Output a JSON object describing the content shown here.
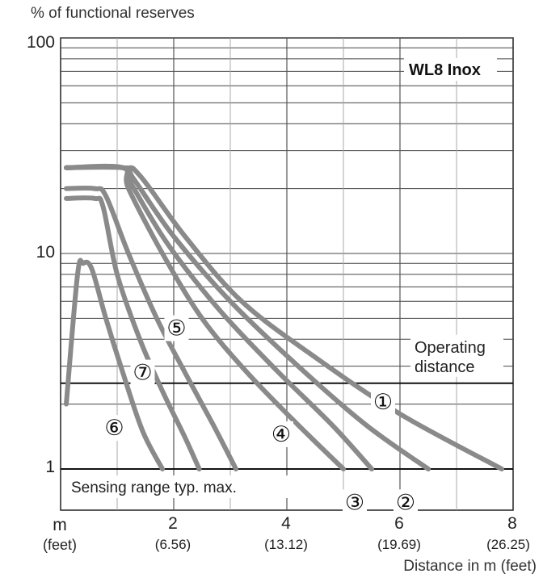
{
  "chart_data": {
    "type": "line",
    "title": "% of functional reserves",
    "xlabel": "Distance in m (feet)",
    "x_unit_label": "m",
    "x_unit_sublabel": "(feet)",
    "y_scale": "log",
    "xlim": [
      0,
      8
    ],
    "ylim": [
      1,
      100
    ],
    "grid": true,
    "x_ticks": [
      {
        "value": 2,
        "label": "2",
        "sub": "(6.56)"
      },
      {
        "value": 4,
        "label": "4",
        "sub": "(13.12)"
      },
      {
        "value": 6,
        "label": "6",
        "sub": "(19.69)"
      },
      {
        "value": 8,
        "label": "8",
        "sub": "(26.25)"
      }
    ],
    "y_ticks": [
      {
        "value": 1,
        "label": "1"
      },
      {
        "value": 10,
        "label": "10"
      },
      {
        "value": 100,
        "label": "100"
      }
    ],
    "legend": "WL8 Inox",
    "reference_lines": [
      {
        "y": 2.5,
        "label_line1": "Operating",
        "label_line2": "distance"
      },
      {
        "y": 1,
        "label": "Sensing range typ. max."
      }
    ],
    "series": [
      {
        "marker": "①",
        "x": [
          0.1,
          1.1,
          1.4,
          2.2,
          3.2,
          4.5,
          6.0,
          7.8
        ],
        "y": [
          25,
          25,
          23,
          12,
          6,
          3.3,
          1.8,
          1.0
        ],
        "label_at": [
          5.7,
          2.05
        ]
      },
      {
        "marker": "②",
        "x": [
          0.1,
          1.1,
          1.3,
          2.0,
          3.0,
          4.2,
          5.4,
          6.5
        ],
        "y": [
          25,
          25,
          22,
          12,
          6,
          3.0,
          1.6,
          1.0
        ],
        "label_at": [
          6.1,
          0.7
        ]
      },
      {
        "marker": "③",
        "x": [
          0.1,
          1.1,
          1.25,
          1.9,
          2.8,
          3.8,
          4.8,
          5.5
        ],
        "y": [
          25,
          25,
          21,
          11,
          5.5,
          2.9,
          1.6,
          1.0
        ],
        "label_at": [
          5.2,
          0.7
        ]
      },
      {
        "marker": "④",
        "x": [
          0.1,
          1.1,
          1.2,
          1.8,
          2.5,
          3.3,
          4.2,
          5.0
        ],
        "y": [
          25,
          25,
          20,
          10,
          5,
          2.8,
          1.6,
          1.0
        ],
        "label_at": [
          3.9,
          1.45
        ]
      },
      {
        "marker": "⑤",
        "x": [
          0.1,
          0.6,
          0.8,
          1.2,
          1.7,
          2.2,
          2.7,
          3.1
        ],
        "y": [
          20,
          20,
          18.5,
          10,
          5,
          2.8,
          1.6,
          1.0
        ],
        "label_at": [
          2.05,
          4.5
        ]
      },
      {
        "marker": "⑦",
        "x": [
          0.1,
          0.6,
          0.75,
          1.0,
          1.4,
          1.8,
          2.2,
          2.45
        ],
        "y": [
          18,
          18,
          16.5,
          8,
          4,
          2.3,
          1.4,
          1.0
        ],
        "label_at": [
          1.45,
          2.8
        ]
      },
      {
        "marker": "⑥",
        "x": [
          0.1,
          0.3,
          0.4,
          0.55,
          0.8,
          1.1,
          1.45,
          1.8
        ],
        "y": [
          2,
          8,
          9,
          8.5,
          5,
          2.8,
          1.5,
          1.0
        ],
        "label_at": [
          0.95,
          1.55
        ]
      }
    ],
    "series_color": "#8a8a8a"
  }
}
